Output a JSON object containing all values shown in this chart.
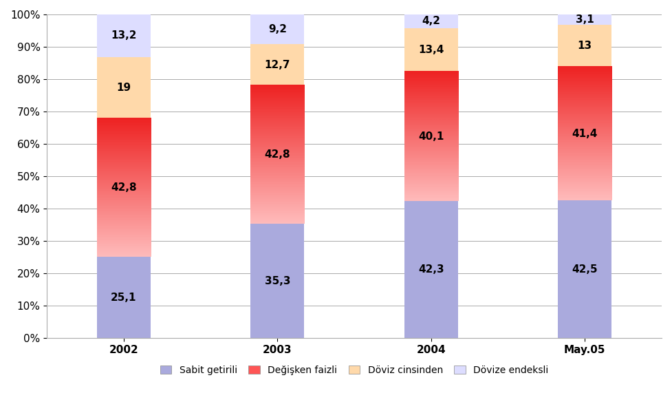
{
  "categories": [
    "2002",
    "2003",
    "2004",
    "May.05"
  ],
  "series": {
    "Sabit getirili": [
      25.1,
      35.3,
      42.3,
      42.5
    ],
    "Değişken faizli": [
      42.8,
      42.8,
      40.1,
      41.4
    ],
    "Döviz cinsinden": [
      19.0,
      12.7,
      13.4,
      13.0
    ],
    "Dövize endeksli": [
      13.2,
      9.2,
      4.2,
      3.1
    ]
  },
  "colors": {
    "Sabit getirili": "#AAAADD",
    "Değişken faizli_top": "#EE2222",
    "Değişken faizli_bottom": "#FFBBBB",
    "Döviz cinsinden": "#FFD9AA",
    "Dövize endeksli": "#DDDDFF"
  },
  "bar_width": 0.35,
  "ylim": [
    0,
    100
  ],
  "yticks": [
    0,
    10,
    20,
    30,
    40,
    50,
    60,
    70,
    80,
    90,
    100
  ],
  "ytick_labels": [
    "0%",
    "10%",
    "20%",
    "30%",
    "40%",
    "50%",
    "60%",
    "70%",
    "80%",
    "90%",
    "100%"
  ],
  "legend_order": [
    "Sabit getirili",
    "Değişken faizli",
    "Döviz cinsinden",
    "Dövize endeksli"
  ],
  "legend_colors": {
    "Sabit getirili": "#AAAADD",
    "Değişken faizli": "#FF5555",
    "Döviz cinsinden": "#FFD9AA",
    "Dövize endeksli": "#DDDDFF"
  },
  "labels": {
    "Sabit getirili": [
      "25,1",
      "35,3",
      "42,3",
      "42,5"
    ],
    "Değişken faizli": [
      "42,8",
      "42,8",
      "40,1",
      "41,4"
    ],
    "Döviz cinsinden": [
      "19",
      "12,7",
      "13,4",
      "13"
    ],
    "Dövize endeksli": [
      "13,2",
      "9,2",
      "4,2",
      "3,1"
    ]
  },
  "label_fontsize": 11,
  "tick_fontsize": 11,
  "legend_fontsize": 10,
  "background_color": "#FFFFFF",
  "grid_color": "#AAAAAA"
}
